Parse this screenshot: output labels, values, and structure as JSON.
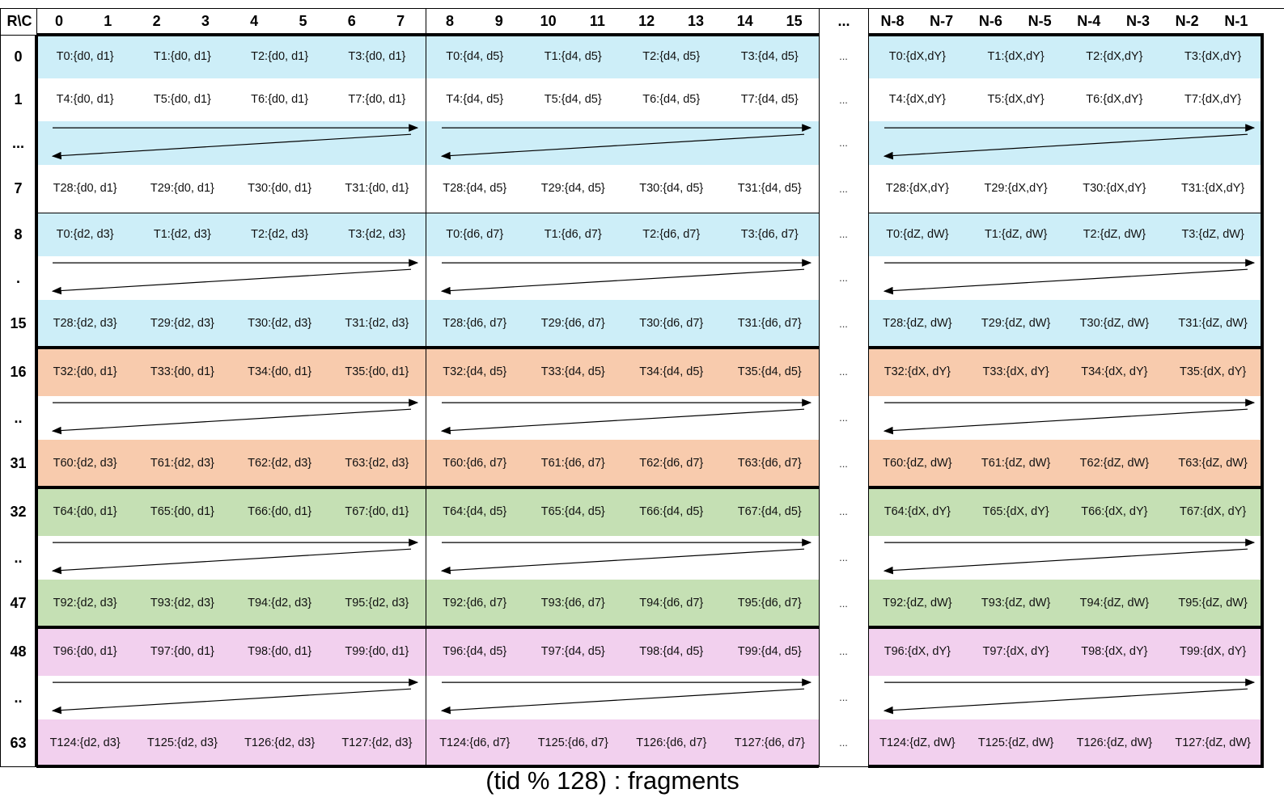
{
  "header": {
    "corner": "R\\C",
    "block_a": [
      "0",
      "1",
      "2",
      "3",
      "4",
      "5",
      "6",
      "7"
    ],
    "block_b": [
      "8",
      "9",
      "10",
      "11",
      "12",
      "13",
      "14",
      "15"
    ],
    "gap": "...",
    "block_c": [
      "N-8",
      "N-7",
      "N-6",
      "N-5",
      "N-4",
      "N-3",
      "N-2",
      "N-1"
    ]
  },
  "colors": {
    "blue": "#cdeef8",
    "orange": "#f8cbad",
    "green": "#c5e0b4",
    "pink": "#f2d0ee",
    "white": "#ffffff"
  },
  "gap_text": "...",
  "rows": [
    {
      "label": "0",
      "fill": "blue",
      "cells": [
        [
          "T0:{d0, d1}",
          "T1:{d0, d1}",
          "T2:{d0, d1}",
          "T3:{d0, d1}"
        ],
        [
          "T0:{d4, d5}",
          "T1:{d4, d5}",
          "T2:{d4, d5}",
          "T3:{d4, d5}"
        ],
        [
          "T0:{dX,dY}",
          "T1:{dX,dY}",
          "T2:{dX,dY}",
          "T3:{dX,dY}"
        ]
      ]
    },
    {
      "label": "1",
      "fill": "white",
      "cells": [
        [
          "T4:{d0, d1}",
          "T5:{d0, d1}",
          "T6:{d0, d1}",
          "T7:{d0, d1}"
        ],
        [
          "T4:{d4, d5}",
          "T5:{d4, d5}",
          "T6:{d4, d5}",
          "T7:{d4, d5}"
        ],
        [
          "T4:{dX,dY}",
          "T5:{dX,dY}",
          "T6:{dX,dY}",
          "T7:{dX,dY}"
        ]
      ]
    },
    {
      "label": "...",
      "fill": "blue",
      "arrow": true
    },
    {
      "label": "7",
      "fill": "white",
      "cells": [
        [
          "T28:{d0, d1}",
          "T29:{d0, d1}",
          "T30:{d0, d1}",
          "T31:{d0, d1}"
        ],
        [
          "T28:{d4, d5}",
          "T29:{d4, d5}",
          "T30:{d4, d5}",
          "T31:{d4, d5}"
        ],
        [
          "T28:{dX,dY}",
          "T29:{dX,dY}",
          "T30:{dX,dY}",
          "T31:{dX,dY}"
        ]
      ]
    },
    {
      "label": "8",
      "fill": "blue",
      "cells": [
        [
          "T0:{d2, d3}",
          "T1:{d2, d3}",
          "T2:{d2, d3}",
          "T3:{d2, d3}"
        ],
        [
          "T0:{d6, d7}",
          "T1:{d6, d7}",
          "T2:{d6, d7}",
          "T3:{d6, d7}"
        ],
        [
          "T0:{dZ, dW}",
          "T1:{dZ, dW}",
          "T2:{dZ, dW}",
          "T3:{dZ, dW}"
        ]
      ]
    },
    {
      "label": ".",
      "fill": "white",
      "arrow": true
    },
    {
      "label": "15",
      "fill": "blue",
      "cells": [
        [
          "T28:{d2, d3}",
          "T29:{d2, d3}",
          "T30:{d2, d3}",
          "T31:{d2, d3}"
        ],
        [
          "T28:{d6, d7}",
          "T29:{d6, d7}",
          "T30:{d6, d7}",
          "T31:{d6, d7}"
        ],
        [
          "T28:{dZ, dW}",
          "T29:{dZ, dW}",
          "T30:{dZ, dW}",
          "T31:{dZ, dW}"
        ]
      ]
    },
    {
      "label": "16",
      "fill": "orange",
      "cells": [
        [
          "T32:{d0, d1}",
          "T33:{d0, d1}",
          "T34:{d0, d1}",
          "T35:{d0, d1}"
        ],
        [
          "T32:{d4, d5}",
          "T33:{d4, d5}",
          "T34:{d4, d5}",
          "T35:{d4, d5}"
        ],
        [
          "T32:{dX, dY}",
          "T33:{dX, dY}",
          "T34:{dX, dY}",
          "T35:{dX, dY}"
        ]
      ]
    },
    {
      "label": "..",
      "fill": "white",
      "arrow": true
    },
    {
      "label": "31",
      "fill": "orange",
      "cells": [
        [
          "T60:{d2, d3}",
          "T61:{d2, d3}",
          "T62:{d2, d3}",
          "T63:{d2, d3}"
        ],
        [
          "T60:{d6, d7}",
          "T61:{d6, d7}",
          "T62:{d6, d7}",
          "T63:{d6, d7}"
        ],
        [
          "T60:{dZ, dW}",
          "T61:{dZ, dW}",
          "T62:{dZ, dW}",
          "T63:{dZ, dW}"
        ]
      ]
    },
    {
      "label": "32",
      "fill": "green",
      "cells": [
        [
          "T64:{d0, d1}",
          "T65:{d0, d1}",
          "T66:{d0, d1}",
          "T67:{d0, d1}"
        ],
        [
          "T64:{d4, d5}",
          "T65:{d4, d5}",
          "T66:{d4, d5}",
          "T67:{d4, d5}"
        ],
        [
          "T64:{dX, dY}",
          "T65:{dX, dY}",
          "T66:{dX, dY}",
          "T67:{dX, dY}"
        ]
      ]
    },
    {
      "label": "..",
      "fill": "white",
      "arrow": true
    },
    {
      "label": "47",
      "fill": "green",
      "cells": [
        [
          "T92:{d2, d3}",
          "T93:{d2, d3}",
          "T94:{d2, d3}",
          "T95:{d2, d3}"
        ],
        [
          "T92:{d6, d7}",
          "T93:{d6, d7}",
          "T94:{d6, d7}",
          "T95:{d6, d7}"
        ],
        [
          "T92:{dZ, dW}",
          "T93:{dZ, dW}",
          "T94:{dZ, dW}",
          "T95:{dZ, dW}"
        ]
      ]
    },
    {
      "label": "48",
      "fill": "pink",
      "cells": [
        [
          "T96:{d0, d1}",
          "T97:{d0, d1}",
          "T98:{d0, d1}",
          "T99:{d0, d1}"
        ],
        [
          "T96:{d4, d5}",
          "T97:{d4, d5}",
          "T98:{d4, d5}",
          "T99:{d4, d5}"
        ],
        [
          "T96:{dX, dY}",
          "T97:{dX, dY}",
          "T98:{dX, dY}",
          "T99:{dX, dY}"
        ]
      ]
    },
    {
      "label": "..",
      "fill": "white",
      "arrow": true
    },
    {
      "label": "63",
      "fill": "pink",
      "cells": [
        [
          "T124:{d2, d3}",
          "T125:{d2, d3}",
          "T126:{d2, d3}",
          "T127:{d2, d3}"
        ],
        [
          "T124:{d6, d7}",
          "T125:{d6, d7}",
          "T126:{d6, d7}",
          "T127:{d6, d7}"
        ],
        [
          "T124:{dZ, dW}",
          "T125:{dZ, dW}",
          "T126:{dZ, dW}",
          "T127:{dZ, dW}"
        ]
      ]
    }
  ],
  "caption": "(tid % 128) : fragments"
}
